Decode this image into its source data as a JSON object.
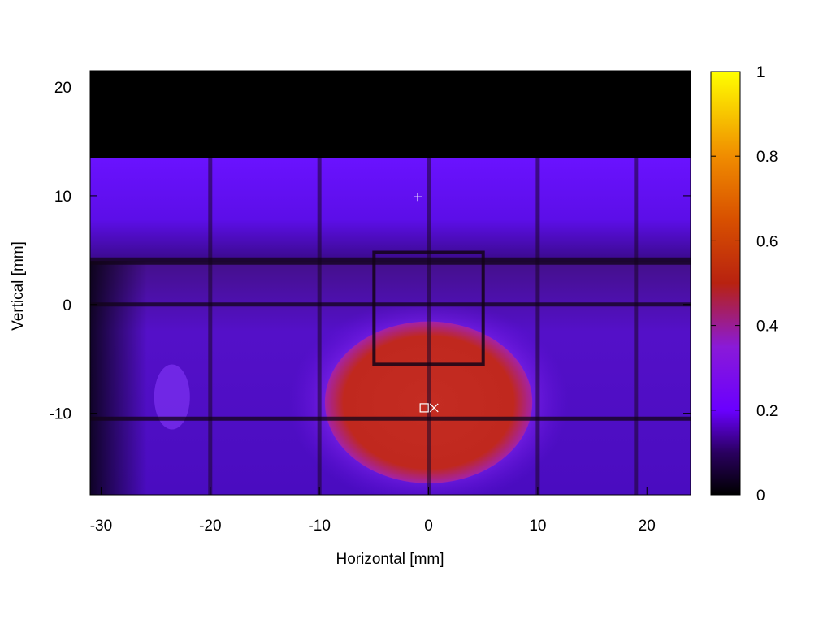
{
  "chart_data": {
    "type": "heatmap",
    "title": "",
    "xlabel": "Horizontal [mm]",
    "ylabel": "Vertical [mm]",
    "xlim": [
      -31,
      24
    ],
    "ylim": [
      -17.5,
      21.5
    ],
    "xticks": [
      -30,
      -20,
      -10,
      0,
      10,
      20
    ],
    "xtick_labels": [
      "-30",
      "-20",
      "-10",
      "0",
      "10",
      "20"
    ],
    "yticks": [
      20,
      10,
      0,
      -10
    ],
    "ytick_labels": [
      "20",
      "10",
      "0",
      "-10"
    ],
    "colorbar": {
      "range": [
        0,
        1
      ],
      "ticks": [
        0,
        0.2,
        0.4,
        0.6,
        0.8,
        1
      ],
      "tick_labels": [
        "0",
        "0.2",
        "0.4",
        "0.6",
        "0.8",
        "1"
      ],
      "colormap": "gnuplot-hot (black-purple-red-orange-yellow)"
    },
    "grid": false,
    "regions": {
      "empty_above_y_mm": 13.5,
      "band_level": 0.25,
      "lower_field_level": 0.2,
      "hotspot_level": 0.45,
      "hotspot_center_mm": [
        0,
        -9
      ],
      "hotspot_halfwidth_mm": 9.5,
      "wire_lines_x_mm": [
        -20,
        -10,
        0,
        10,
        19
      ],
      "wire_lines_y_mm": [
        4,
        0,
        -10.5
      ],
      "rectangle_mm": {
        "x1": -5,
        "x2": 5,
        "y1": -5.5,
        "y2": 4.8
      }
    },
    "markers": [
      {
        "symbol": "+",
        "x": -1,
        "y": 9.9
      },
      {
        "symbol": "□",
        "x": -0.4,
        "y": -9.5
      },
      {
        "symbol": "×",
        "x": 0.5,
        "y": -9.5
      }
    ]
  }
}
